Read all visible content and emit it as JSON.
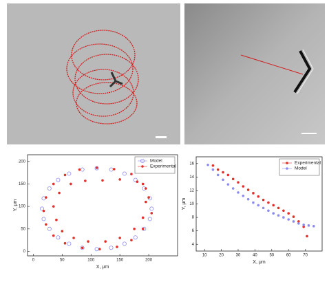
{
  "chart_data": [
    {
      "type": "scatter",
      "x_label": "X, μm",
      "y_label": "Y, μm",
      "xlim": [
        -10,
        250
      ],
      "ylim": [
        -10,
        215
      ],
      "xticks": [
        0,
        50,
        100,
        150,
        200
      ],
      "yticks": [
        0,
        50,
        100,
        150,
        200
      ],
      "legend": "upper right",
      "series": [
        {
          "name": "Model",
          "color": "#8c8cf0",
          "marker": "open",
          "x": [
            205,
            202,
            192,
            177,
            158,
            135,
            110,
            85,
            62,
            43,
            28,
            18,
            15,
            18,
            28,
            43,
            62,
            85,
            110,
            135,
            158,
            177,
            192,
            202
          ],
          "values": [
            95,
            118,
            140,
            159,
            173,
            182,
            185,
            182,
            173,
            159,
            140,
            118,
            95,
            72,
            50,
            31,
            17,
            8,
            5,
            8,
            17,
            31,
            50,
            72
          ]
        },
        {
          "name": "Experimental",
          "color": "#e0302a",
          "marker": "filled",
          "x": [
            200,
            190,
            170,
            140,
            110,
            80,
            55,
            35,
            22,
            18,
            22,
            35,
            55,
            85,
            115,
            145,
            170,
            190,
            205,
            195,
            180,
            150,
            120,
            90,
            65,
            45,
            35,
            40,
            50,
            70,
            95,
            125,
            150,
            175,
            190,
            195
          ],
          "values": [
            120,
            150,
            172,
            183,
            186,
            182,
            170,
            150,
            120,
            90,
            60,
            35,
            18,
            8,
            5,
            10,
            25,
            50,
            85,
            140,
            155,
            160,
            158,
            157,
            150,
            130,
            100,
            70,
            45,
            30,
            22,
            22,
            30,
            50,
            75,
            110
          ]
        }
      ]
    },
    {
      "type": "scatter",
      "x_label": "X, μm",
      "y_label": "Y, μm",
      "xlim": [
        5,
        80
      ],
      "ylim": [
        3,
        17
      ],
      "xticks": [
        10,
        20,
        30,
        40,
        50,
        60,
        70
      ],
      "yticks": [
        4,
        6,
        8,
        10,
        12,
        14,
        16
      ],
      "legend": "upper right",
      "series": [
        {
          "name": "Experimental",
          "color": "#e0302a",
          "marker": "filled",
          "x": [
            15,
            18,
            21,
            24,
            27,
            30,
            33,
            36,
            39,
            42,
            45,
            48,
            51,
            54,
            57,
            60,
            63,
            66,
            69,
            71
          ],
          "values": [
            15.7,
            15.1,
            14.7,
            14.3,
            13.7,
            13.2,
            12.6,
            12.1,
            11.6,
            11.1,
            10.6,
            10.2,
            9.8,
            9.4,
            9.0,
            8.6,
            8.1,
            7.4,
            6.6,
            5.2
          ]
        },
        {
          "name": "Model",
          "color": "#8c8cf0",
          "marker": "filled",
          "x": [
            12,
            15,
            18,
            21,
            24,
            27,
            30,
            33,
            36,
            39,
            42,
            45,
            48,
            51,
            54,
            57,
            60,
            63,
            66,
            69,
            72,
            75
          ],
          "values": [
            15.8,
            15.1,
            14.3,
            13.6,
            12.9,
            12.3,
            11.7,
            11.2,
            10.7,
            10.2,
            9.8,
            9.4,
            9.0,
            8.6,
            8.3,
            8.0,
            7.7,
            7.4,
            7.1,
            6.9,
            6.8,
            6.7
          ]
        }
      ]
    }
  ]
}
